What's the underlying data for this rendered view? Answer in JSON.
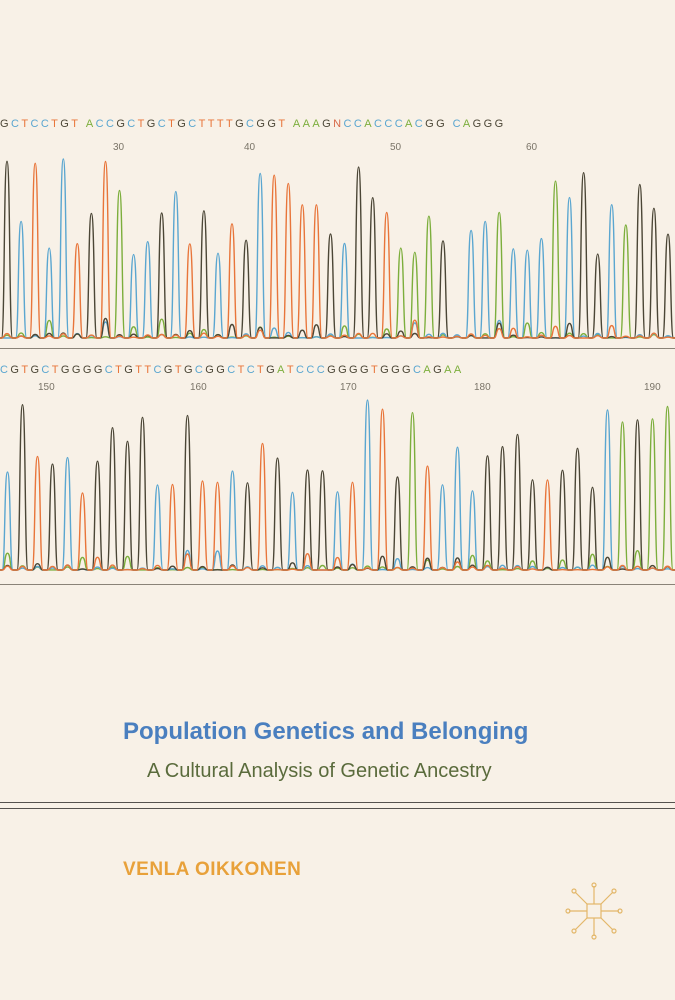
{
  "cover": {
    "title": "Population Genetics and Belonging",
    "subtitle": "A Cultural Analysis of Genetic Ancestry",
    "author": "VENLA OIKKONEN",
    "publisher_logo": "palgrave-logo-icon"
  },
  "chromatogram": {
    "base_colors": {
      "A": "#7cae3c",
      "C": "#5aa6d0",
      "G": "#4b4636",
      "T": "#e8753a",
      "N": "#d86a4a"
    },
    "row1": {
      "sequence": "GCTCCTGT ACCGCTGCTGCTTTTGCGGT AAAGNCCACCCACGG CAGGG",
      "positions": [
        "30",
        "40",
        "50",
        "60"
      ]
    },
    "row2": {
      "sequence": "CGTGCTGGGGCTGTTCGTGCGGCTCTGATCCCGGGGTGGGCAGAA",
      "positions": [
        "150",
        "160",
        "170",
        "180",
        "190"
      ]
    }
  }
}
